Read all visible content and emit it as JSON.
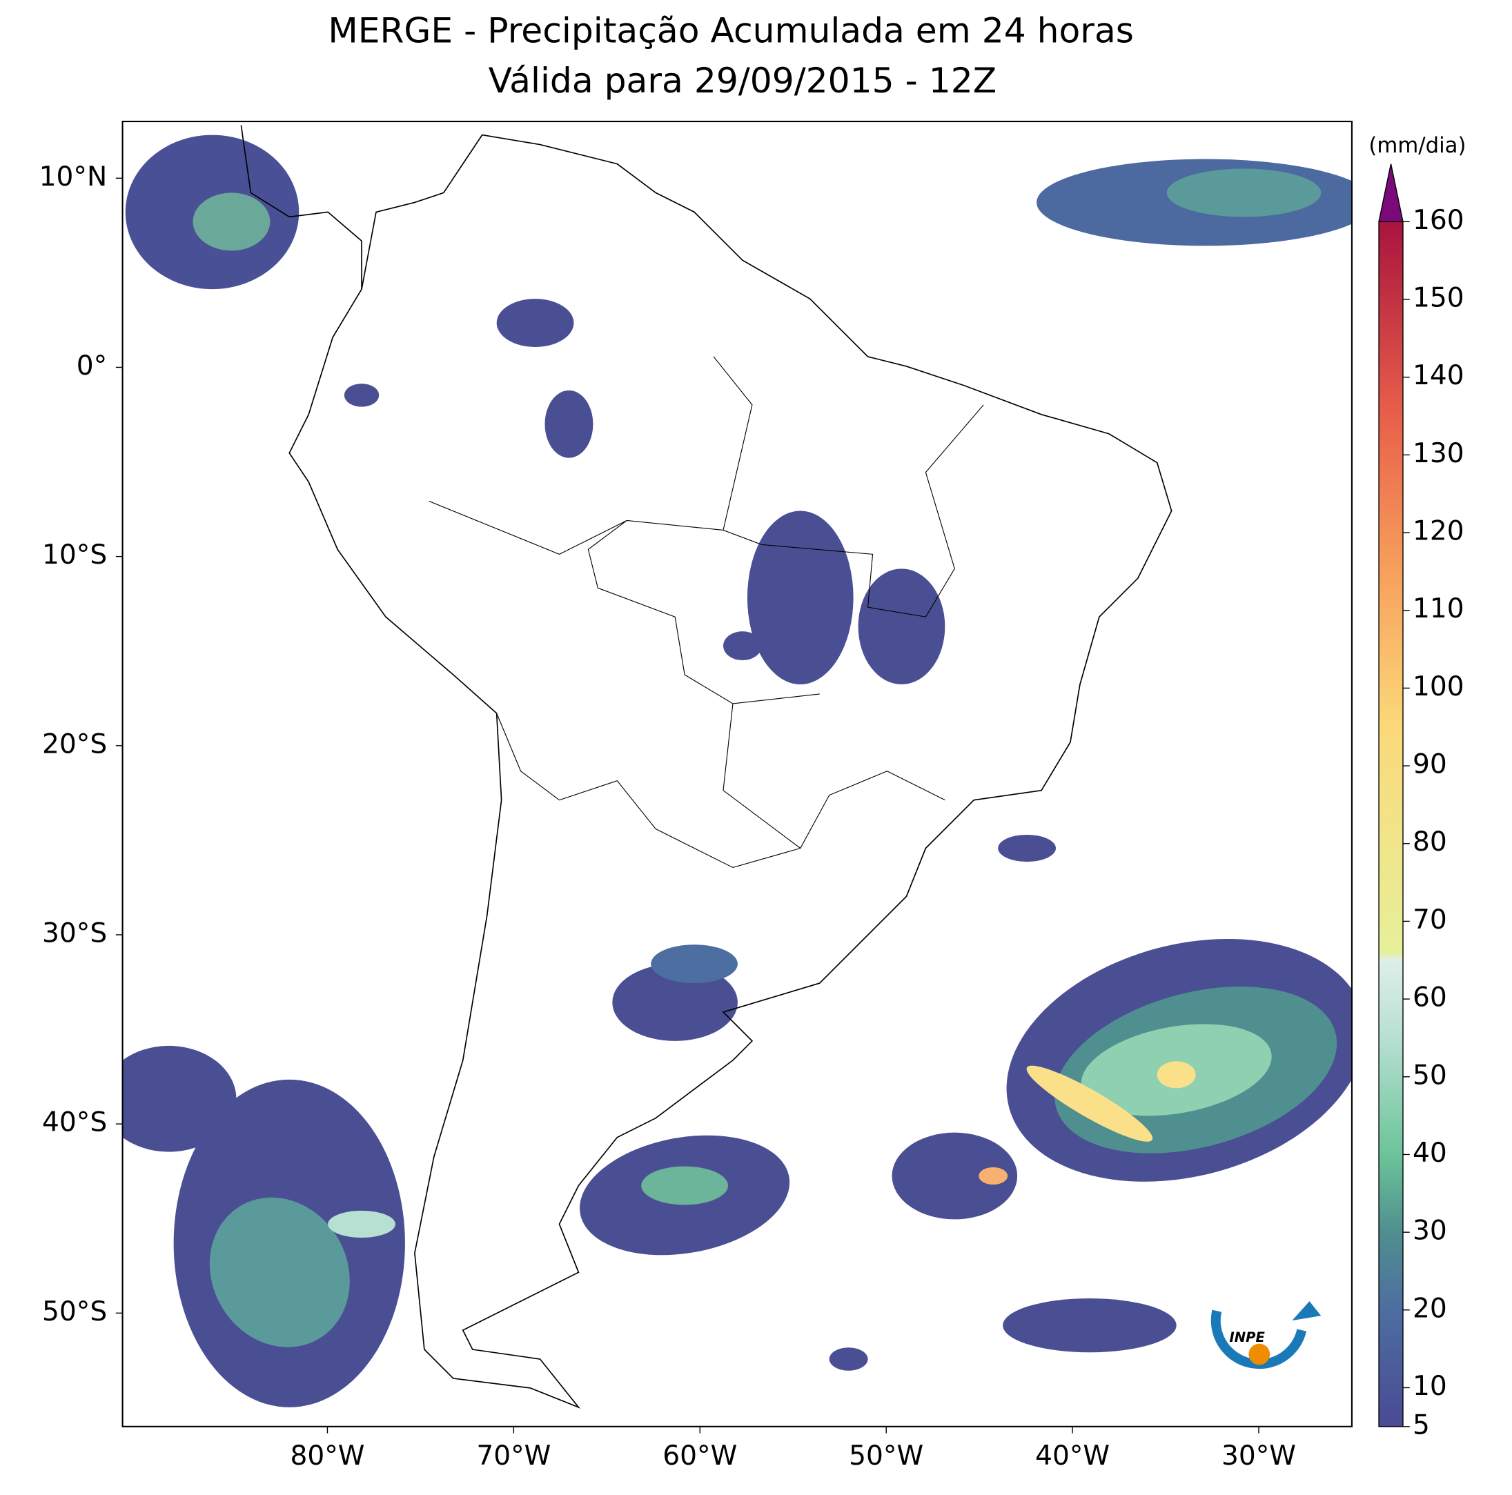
{
  "map": {
    "title": "MERGE - Precipitação Acumulada em 24 horas",
    "subtitle": "Válida para 29/09/2015 - 12Z",
    "lonlim": [
      -91,
      -25
    ],
    "latlim": [
      -56,
      13
    ],
    "lonticks": [
      {
        "value": -80,
        "label": "80°W"
      },
      {
        "value": -70,
        "label": "70°W"
      },
      {
        "value": -60,
        "label": "60°W"
      },
      {
        "value": -50,
        "label": "50°W"
      },
      {
        "value": -40,
        "label": "40°W"
      },
      {
        "value": -30,
        "label": "30°W"
      }
    ],
    "latticks": [
      {
        "value": 10,
        "label": "10°N"
      },
      {
        "value": 0,
        "label": "0°"
      },
      {
        "value": -10,
        "label": "10°S"
      },
      {
        "value": -20,
        "label": "20°S"
      },
      {
        "value": -30,
        "label": "30°S"
      },
      {
        "value": -40,
        "label": "40°S"
      },
      {
        "value": -50,
        "label": "50°S"
      }
    ],
    "logo": "INPE"
  },
  "colorbar": {
    "unit": "(mm/dia)",
    "lim": [
      5,
      160
    ],
    "ticks": [
      5,
      10,
      20,
      30,
      40,
      50,
      60,
      70,
      80,
      90,
      100,
      110,
      120,
      130,
      140,
      150,
      160
    ],
    "stops": [
      {
        "value": 5,
        "color": "#4a4a94"
      },
      {
        "value": 20,
        "color": "#4d6ea0"
      },
      {
        "value": 30,
        "color": "#4f8f8f"
      },
      {
        "value": 40,
        "color": "#6cc49a"
      },
      {
        "value": 55,
        "color": "#b7e0d2"
      },
      {
        "value": 65,
        "color": "#dfeeea"
      },
      {
        "value": 66,
        "color": "#e6f09a"
      },
      {
        "value": 95,
        "color": "#fbd97a"
      },
      {
        "value": 115,
        "color": "#f7a05c"
      },
      {
        "value": 135,
        "color": "#e8604a"
      },
      {
        "value": 160,
        "color": "#a8143e"
      }
    ],
    "extend_color": "#7a0a7a"
  }
}
